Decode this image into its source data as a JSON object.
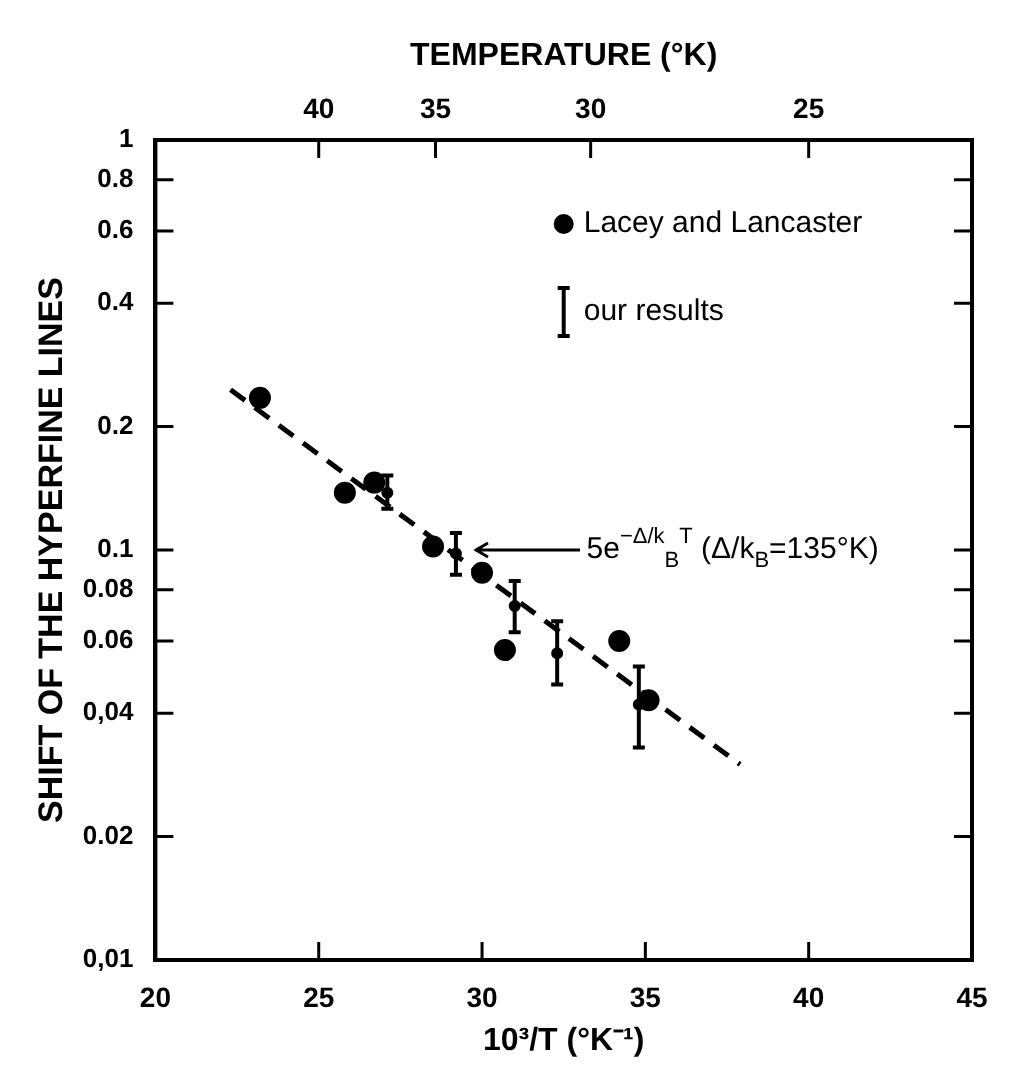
{
  "chart_data": {
    "type": "scatter",
    "xlabel": "10³/T (°K⁻¹)",
    "ylabel": "SHIFT OF THE HYPERFINE LINES",
    "x2label": "TEMPERATURE (°K)",
    "xlim": [
      20,
      45
    ],
    "xticks": [
      20,
      25,
      30,
      35,
      40,
      45
    ],
    "log": "y",
    "ylim": [
      0.01,
      1
    ],
    "yticks": [
      {
        "value": 0.01,
        "label": "0,01"
      },
      {
        "value": 0.02,
        "label": "0.02"
      },
      {
        "value": 0.04,
        "label": "0,04"
      },
      {
        "value": 0.06,
        "label": "0.06"
      },
      {
        "value": 0.08,
        "label": "0.08"
      },
      {
        "value": 0.1,
        "label": "0.1"
      },
      {
        "value": 0.2,
        "label": "0.2"
      },
      {
        "value": 0.4,
        "label": "0.4"
      },
      {
        "value": 0.6,
        "label": "0.6"
      },
      {
        "value": 0.8,
        "label": "0.8"
      },
      1
    ],
    "legend": "top right",
    "series": [
      {
        "name": "Lacey and Lancaster",
        "color": "#000000",
        "marker": "circle",
        "x": [
          23.2,
          25.8,
          26.7,
          28.5,
          30.0,
          30.7,
          34.2,
          35.1
        ],
        "values": [
          0.235,
          0.138,
          0.146,
          0.102,
          0.088,
          0.057,
          0.06,
          0.043
        ]
      },
      {
        "name": "our results",
        "type": "scatter",
        "color": "#000000",
        "marker": "circle",
        "x": [
          27.1,
          29.2,
          31.0,
          32.3,
          34.8
        ],
        "values": [
          0.138,
          0.098,
          0.073,
          0.056,
          0.042
        ],
        "errors": [
          [
            0.126,
            0.152
          ],
          [
            0.087,
            0.11
          ],
          [
            0.063,
            0.084
          ],
          [
            0.047,
            0.067
          ],
          [
            0.033,
            0.052
          ]
        ]
      },
      {
        "type": "line",
        "color": "#000000",
        "line_style": "dashed",
        "marker": "none",
        "x": [
          22.3,
          37.9
        ],
        "values": [
          0.246,
          0.03
        ]
      }
    ],
    "annotations": [
      "5e$^{−Δ/k}$$_{B}$$^{T}$ (Δ/k$_{B}$=135°K)",
      "40",
      "35",
      "30",
      "25"
    ]
  }
}
